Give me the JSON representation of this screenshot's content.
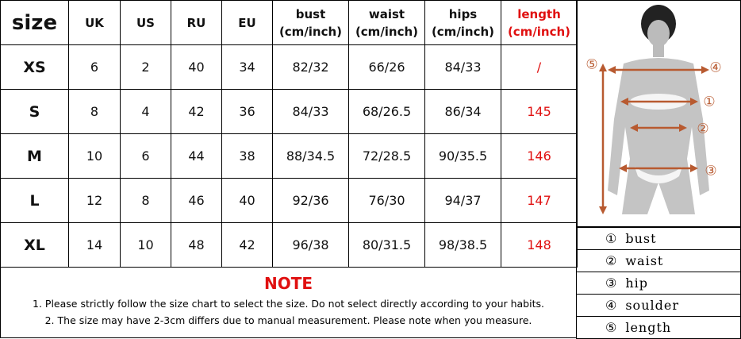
{
  "table": {
    "header": [
      {
        "main": "size"
      },
      {
        "main": "UK"
      },
      {
        "main": "US"
      },
      {
        "main": "RU"
      },
      {
        "main": "EU"
      },
      {
        "main": "bust",
        "unit": "(cm/inch)"
      },
      {
        "main": "waist",
        "unit": "(cm/inch)"
      },
      {
        "main": "hips",
        "unit": "(cm/inch)"
      },
      {
        "main": "length",
        "unit": "(cm/inch)"
      }
    ],
    "rows": [
      [
        "XS",
        "6",
        "2",
        "40",
        "34",
        "82/32",
        "66/26",
        "84/33",
        "/"
      ],
      [
        "S",
        "8",
        "4",
        "42",
        "36",
        "84/33",
        "68/26.5",
        "86/34",
        "145"
      ],
      [
        "M",
        "10",
        "6",
        "44",
        "38",
        "88/34.5",
        "72/28.5",
        "90/35.5",
        "146"
      ],
      [
        "L",
        "12",
        "8",
        "46",
        "40",
        "92/36",
        "76/30",
        "94/37",
        "147"
      ],
      [
        "XL",
        "14",
        "10",
        "48",
        "42",
        "96/38",
        "80/31.5",
        "98/38.5",
        "148"
      ]
    ]
  },
  "note": {
    "title": "NOTE",
    "lines": [
      "1. Please strictly follow the size chart to select the size. Do not select directly according to your habits.",
      "2. The size may have 2-3cm differs due to manual measurement. Please note when you measure."
    ]
  },
  "figure": {
    "markers": [
      "⑤",
      "④",
      "①",
      "②",
      "③"
    ]
  },
  "legend": [
    {
      "marker": "①",
      "label": "bust"
    },
    {
      "marker": "②",
      "label": "waist"
    },
    {
      "marker": "③",
      "label": "hip"
    },
    {
      "marker": "④",
      "label": "soulder"
    },
    {
      "marker": "⑤",
      "label": "length"
    }
  ]
}
